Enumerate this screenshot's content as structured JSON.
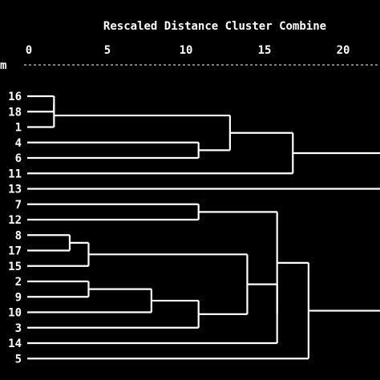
{
  "chart_data": {
    "type": "dendrogram",
    "title": "Rescaled Distance Cluster Combine",
    "row_header": "m",
    "x_ticks": [
      0,
      5,
      10,
      15,
      20
    ],
    "xlim": [
      0,
      22.5
    ],
    "leaves": [
      "16",
      "18",
      "1",
      "4",
      "6",
      "11",
      "13",
      "7",
      "12",
      "8",
      "17",
      "15",
      "2",
      "9",
      "10",
      "3",
      "14",
      "5"
    ],
    "merges": [
      {
        "a": {
          "leaf": 0
        },
        "b": {
          "leaf": 1
        },
        "dist": 1.6
      },
      {
        "a": {
          "node": 0
        },
        "b": {
          "leaf": 2
        },
        "dist": 1.6
      },
      {
        "a": {
          "leaf": 3
        },
        "b": {
          "leaf": 4
        },
        "dist": 10.8
      },
      {
        "a": {
          "node": 1
        },
        "b": {
          "node": 2
        },
        "dist": 12.8
      },
      {
        "a": {
          "node": 3
        },
        "b": {
          "leaf": 5
        },
        "dist": 16.8
      },
      {
        "a": {
          "leaf": 7
        },
        "b": {
          "leaf": 8
        },
        "dist": 10.8
      },
      {
        "a": {
          "leaf": 9
        },
        "b": {
          "leaf": 10
        },
        "dist": 2.6
      },
      {
        "a": {
          "node": 6
        },
        "b": {
          "leaf": 11
        },
        "dist": 3.8
      },
      {
        "a": {
          "leaf": 12
        },
        "b": {
          "leaf": 13
        },
        "dist": 3.8
      },
      {
        "a": {
          "node": 8
        },
        "b": {
          "leaf": 14
        },
        "dist": 7.8
      },
      {
        "a": {
          "node": 9
        },
        "b": {
          "leaf": 15
        },
        "dist": 10.8
      },
      {
        "a": {
          "node": 7
        },
        "b": {
          "node": 10
        },
        "dist": 13.9
      },
      {
        "a": {
          "node": 11
        },
        "b": {
          "leaf": 16
        },
        "dist": 15.8
      },
      {
        "a": {
          "node": 5
        },
        "b": {
          "node": 12
        },
        "dist": 15.8
      },
      {
        "a": {
          "node": 13
        },
        "b": {
          "leaf": 17
        },
        "dist": 17.8
      },
      {
        "a": {
          "node": 4
        },
        "b": {
          "leaf": 6
        },
        "dist": 22.5
      },
      {
        "a": {
          "node": 14
        },
        "b": {
          "node": 15
        },
        "dist": 22.5
      }
    ]
  }
}
